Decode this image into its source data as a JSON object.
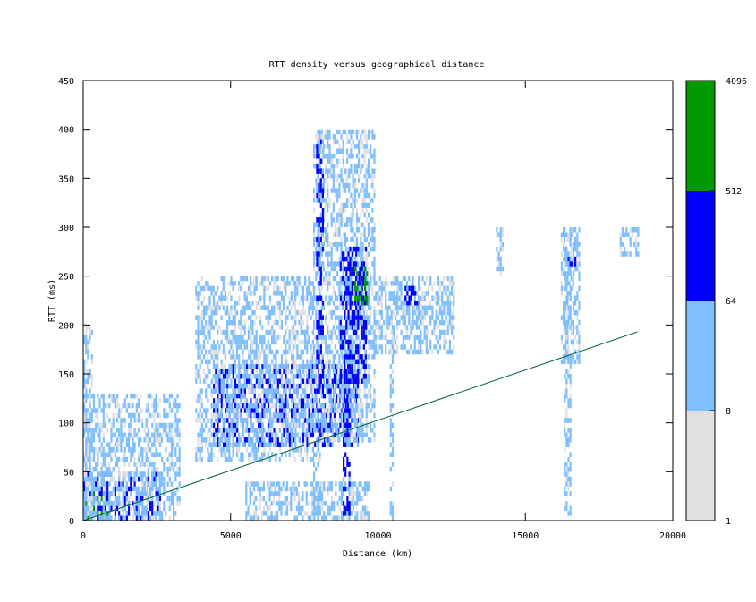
{
  "chart_data": {
    "type": "heatmap",
    "title": "RTT density versus geographical distance",
    "xlabel": "Distance (km)",
    "ylabel": "RTT (ms)",
    "xlim": [
      0,
      20000
    ],
    "ylim": [
      0,
      450
    ],
    "x_ticks": [
      "0",
      "5000",
      "10000",
      "15000",
      "20000"
    ],
    "y_ticks": [
      "0",
      "50",
      "100",
      "150",
      "200",
      "250",
      "300",
      "350",
      "400",
      "450"
    ],
    "grid": false,
    "colorbar": {
      "scale": "log2",
      "bins": [
        {
          "from": 1,
          "to": 8,
          "color": "#e0e0e0"
        },
        {
          "from": 8,
          "to": 64,
          "color": "#80bfff"
        },
        {
          "from": 64,
          "to": 512,
          "color": "#0000ff"
        },
        {
          "from": 512,
          "to": 4096,
          "color": "#009900"
        }
      ],
      "tick_labels": [
        "1",
        "8",
        "64",
        "512",
        "4096"
      ]
    },
    "reference_line": {
      "color": "#006633",
      "points": [
        [
          0,
          0
        ],
        [
          18800,
          193
        ]
      ]
    },
    "density_clusters": [
      {
        "x": [
          0,
          800
        ],
        "y": [
          0,
          30
        ],
        "level": 3
      },
      {
        "x": [
          0,
          2600
        ],
        "y": [
          0,
          50
        ],
        "level": 2
      },
      {
        "x": [
          0,
          3300
        ],
        "y": [
          0,
          130
        ],
        "level": 1
      },
      {
        "x": [
          0,
          300
        ],
        "y": [
          0,
          200
        ],
        "level": 1
      },
      {
        "x": [
          4400,
          9300
        ],
        "y": [
          75,
          160
        ],
        "level": 2
      },
      {
        "x": [
          3800,
          7800
        ],
        "y": [
          60,
          250
        ],
        "level": 1
      },
      {
        "x": [
          7800,
          9900
        ],
        "y": [
          80,
          400
        ],
        "level": 1
      },
      {
        "x": [
          7900,
          8100
        ],
        "y": [
          130,
          390
        ],
        "level": 2
      },
      {
        "x": [
          8700,
          9600
        ],
        "y": [
          140,
          280
        ],
        "level": 2
      },
      {
        "x": [
          9200,
          9600
        ],
        "y": [
          220,
          260
        ],
        "level": 3
      },
      {
        "x": [
          9900,
          12600
        ],
        "y": [
          170,
          250
        ],
        "level": 1
      },
      {
        "x": [
          10900,
          11300
        ],
        "y": [
          220,
          240
        ],
        "level": 2
      },
      {
        "x": [
          16200,
          16800
        ],
        "y": [
          160,
          300
        ],
        "level": 1
      },
      {
        "x": [
          16400,
          16700
        ],
        "y": [
          250,
          270
        ],
        "level": 2
      },
      {
        "x": [
          18200,
          18800
        ],
        "y": [
          270,
          300
        ],
        "level": 1
      },
      {
        "x": [
          5500,
          9700
        ],
        "y": [
          0,
          40
        ],
        "level": 1
      },
      {
        "x": [
          7800,
          8000
        ],
        "y": [
          0,
          80
        ],
        "level": 1
      },
      {
        "x": [
          8800,
          9000
        ],
        "y": [
          0,
          140
        ],
        "level": 2
      },
      {
        "x": [
          10400,
          10500
        ],
        "y": [
          0,
          200
        ],
        "level": 1
      },
      {
        "x": [
          16300,
          16500
        ],
        "y": [
          0,
          300
        ],
        "level": 1
      },
      {
        "x": [
          14000,
          14200
        ],
        "y": [
          250,
          300
        ],
        "level": 1
      }
    ]
  }
}
